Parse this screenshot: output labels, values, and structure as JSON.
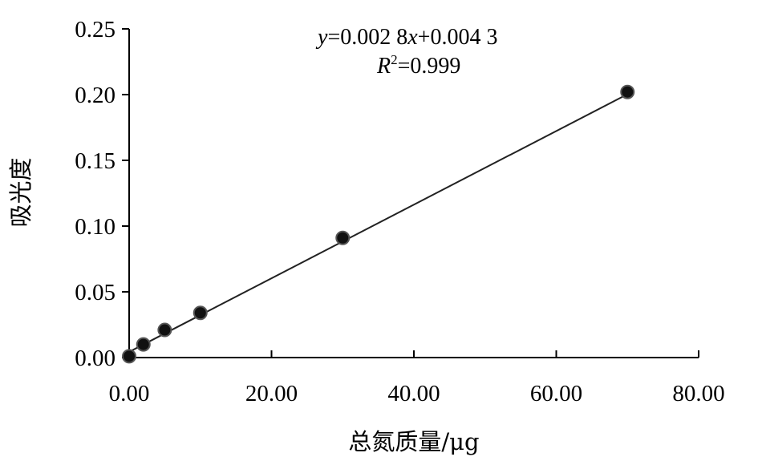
{
  "chart_data": {
    "type": "scatter",
    "title": "",
    "xlabel": "总氮质量/μg",
    "ylabel": "吸光度",
    "xlim": [
      0,
      80
    ],
    "ylim": [
      0,
      0.25
    ],
    "x_ticks": [
      "0.00",
      "20.00",
      "40.00",
      "60.00",
      "80.00"
    ],
    "y_ticks": [
      "0.00",
      "0.05",
      "0.10",
      "0.15",
      "0.20",
      "0.25"
    ],
    "x_tick_values": [
      0,
      20,
      40,
      60,
      80
    ],
    "y_tick_values": [
      0,
      0.05,
      0.1,
      0.15,
      0.2,
      0.25
    ],
    "grid": false,
    "points": [
      {
        "x": 0,
        "y": 0.001
      },
      {
        "x": 2,
        "y": 0.01
      },
      {
        "x": 5,
        "y": 0.021
      },
      {
        "x": 10,
        "y": 0.034
      },
      {
        "x": 30,
        "y": 0.091
      },
      {
        "x": 70,
        "y": 0.202
      }
    ],
    "trendline": {
      "type": "linear",
      "slope": 0.0028,
      "intercept": 0.0043,
      "x_range": [
        0,
        70
      ]
    },
    "annotations": {
      "equation": {
        "y_var": "y",
        "eq_part1": "=0.002 8",
        "x_var": "x",
        "eq_part2": "+0.004 3"
      },
      "r_squared": {
        "r_var": "R",
        "sup": "2",
        "value": "=0.999"
      }
    },
    "colors": {
      "line": "#222222",
      "point_fill": "#111111",
      "axis": "#000000"
    }
  }
}
